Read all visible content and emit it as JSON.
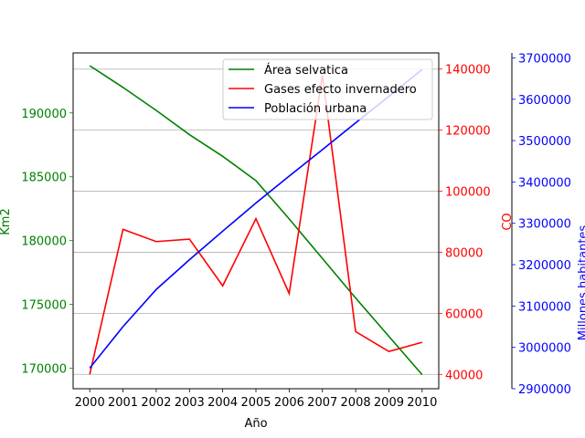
{
  "chart_data": {
    "type": "line",
    "xlabel": "Año",
    "x": [
      2000,
      2001,
      2002,
      2003,
      2004,
      2005,
      2006,
      2007,
      2008,
      2009,
      2010
    ],
    "grid": "horizontal on right axis",
    "legend_position": "top-right",
    "axes": {
      "left": {
        "label": "Km2",
        "color": "#008000",
        "range": [
          168400,
          194700
        ],
        "ticks": [
          170000,
          175000,
          180000,
          185000,
          190000
        ]
      },
      "right": {
        "label": "CO",
        "color": "#ff0000",
        "range": [
          35300,
          145300
        ],
        "ticks": [
          40000,
          60000,
          80000,
          100000,
          120000,
          140000
        ]
      },
      "far_right": {
        "label": "Millones habitantes",
        "color": "#0000ff",
        "range": [
          2900000,
          3712000
        ],
        "ticks": [
          2900000,
          3000000,
          3100000,
          3200000,
          3300000,
          3400000,
          3500000,
          3600000,
          3700000
        ]
      }
    },
    "series": [
      {
        "name": "Área selvatica",
        "axis": "left",
        "color": "#008000",
        "values": [
          193700,
          192000,
          190200,
          188300,
          186600,
          184700,
          181700,
          178600,
          175500,
          172500,
          169500
        ]
      },
      {
        "name": "Gases efecto invernadero",
        "axis": "right",
        "color": "#ff0000",
        "values": [
          40000,
          87500,
          83500,
          84300,
          69000,
          91000,
          66500,
          138000,
          54000,
          47500,
          50500
        ]
      },
      {
        "name": "Población urbana",
        "axis": "far_right",
        "color": "#0000ff",
        "values": [
          2950000,
          3050000,
          3140000,
          3212000,
          3281000,
          3349000,
          3414000,
          3478000,
          3543000,
          3607000,
          3672000
        ]
      }
    ]
  }
}
